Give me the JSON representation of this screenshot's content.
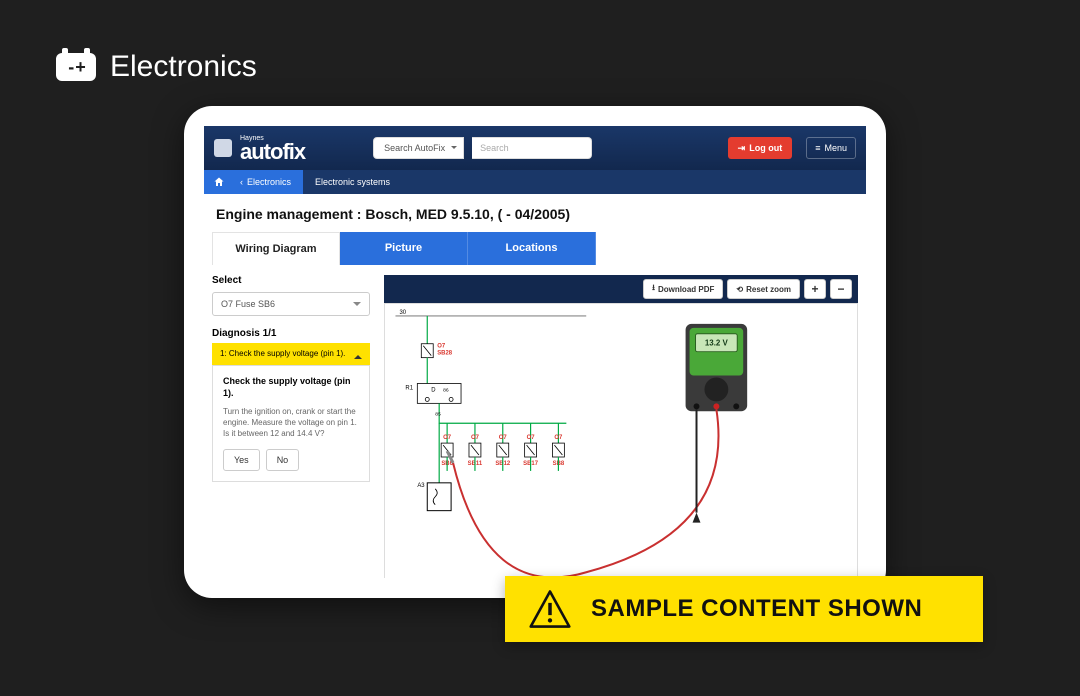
{
  "category": {
    "title": "Electronics"
  },
  "topbar": {
    "brand_small": "Haynes",
    "brand_big": "autofix",
    "search_select": "Search AutoFix",
    "search_placeholder": "Search",
    "logout": "Log out",
    "menu": "Menu"
  },
  "breadcrumb": {
    "back": "Electronics",
    "current": "Electronic systems"
  },
  "page_title": "Engine management :  Bosch, MED 9.5.10, ( - 04/2005)",
  "tabs": {
    "wiring": "Wiring Diagram",
    "picture": "Picture",
    "locations": "Locations"
  },
  "sidebar": {
    "select_label": "Select",
    "select_value": "O7  Fuse  SB6",
    "diag_label": "Diagnosis 1/1",
    "acc_title": "1: Check the supply voltage (pin 1).",
    "diag_title": "Check the supply voltage (pin 1).",
    "diag_text": "Turn the ignition on, crank or start the engine. Measure the voltage on pin 1. Is it between 12 and 14.4 V?",
    "yes": "Yes",
    "no": "No"
  },
  "toolbar": {
    "download": "Download PDF",
    "reset": "Reset zoom",
    "plus": "+",
    "minus": "−"
  },
  "diagram": {
    "meter_reading": "13.2 V",
    "node_30": "30",
    "o7_top": "O7",
    "sb28": "SB28",
    "r1": "R1",
    "d": "D",
    "d86": "86",
    "d85": "85",
    "a3": "A3",
    "fuse_labels": [
      {
        "top": "O7",
        "bot": "SB6"
      },
      {
        "top": "O7",
        "bot": "SB11"
      },
      {
        "top": "O7",
        "bot": "SB12"
      },
      {
        "top": "O7",
        "bot": "SB17"
      },
      {
        "top": "O7",
        "bot": "SB8"
      }
    ],
    "colors": {
      "wire": "#0a8a3a",
      "probe": "#c93030",
      "fuse_text": "#d9372f",
      "meter_body": "#3a3a3a",
      "meter_face": "#4aa838",
      "meter_screen": "#c8e6b8"
    }
  },
  "banner": {
    "text": "SAMPLE CONTENT SHOWN"
  }
}
